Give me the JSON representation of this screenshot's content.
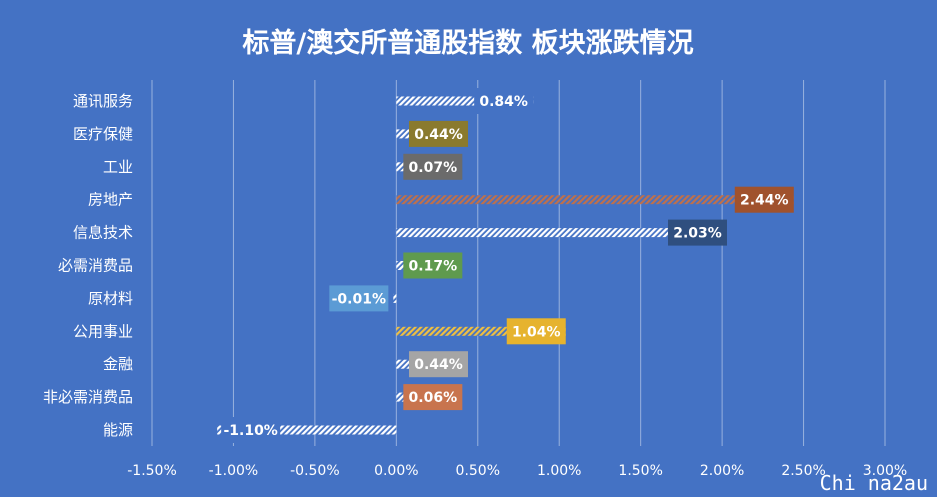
{
  "chart_data": {
    "type": "bar",
    "orientation": "horizontal",
    "title": "标普/澳交所普通股指数 板块涨跌情况",
    "categories": [
      "通讯服务",
      "医疗保健",
      "工业",
      "房地产",
      "信息技术",
      "必需消费品",
      "原材料",
      "公用事业",
      "金融",
      "非必需消费品",
      "能源"
    ],
    "values": [
      0.84,
      0.44,
      0.07,
      2.44,
      2.03,
      0.17,
      -0.01,
      1.04,
      0.44,
      0.06,
      -1.1
    ],
    "labels": [
      "0.84%",
      "0.44%",
      "0.07%",
      "2.44%",
      "2.03%",
      "0.17%",
      "-0.01%",
      "1.04%",
      "0.44%",
      "0.06%",
      "-1.10%"
    ],
    "label_colors": [
      "#4472c4",
      "#8a7a2e",
      "#6b6b6b",
      "#a0522d",
      "#2f4f7f",
      "#5f9a4e",
      "#5b9bd5",
      "#e6b32e",
      "#a5a5a5",
      "#c8744e",
      "#4472c4"
    ],
    "bar_colors": [
      "#ffffff",
      "#ffffff",
      "#ffffff",
      "#c0704a",
      "#ffffff",
      "#ffffff",
      "#ffffff",
      "#f0c040",
      "#ffffff",
      "#ffffff",
      "#ffffff"
    ],
    "xlim": [
      -1.5,
      3.0
    ],
    "xticks": [
      "-1.50%",
      "-1.00%",
      "-0.50%",
      "0.00%",
      "0.50%",
      "1.00%",
      "1.50%",
      "2.00%",
      "2.50%",
      "3.00%"
    ],
    "grid": true,
    "legend": "none"
  },
  "watermark": "Chi na2au"
}
